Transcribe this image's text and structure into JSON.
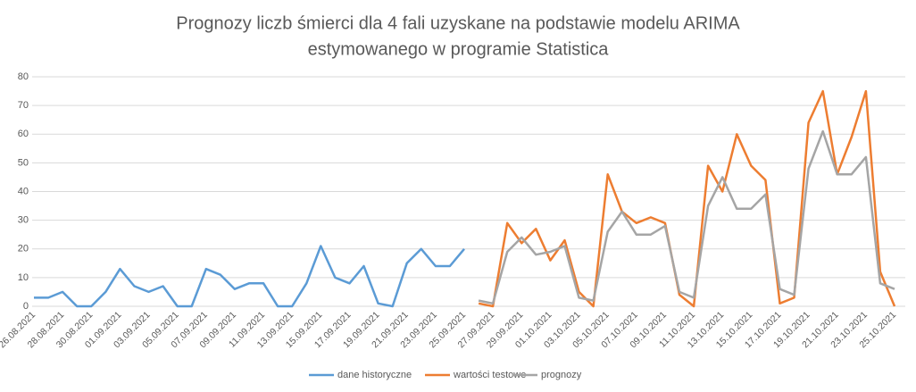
{
  "chart_data": {
    "type": "line",
    "title": [
      "Prognozy liczb śmierci dla 4 fali uzyskane na podstawie modelu ARIMA",
      "estymowanego w programie Statistica"
    ],
    "categories": [
      "26.08.2021",
      null,
      "28.08.2021",
      null,
      "30.08.2021",
      null,
      "01.09.2021",
      null,
      "03.09.2021",
      null,
      "05.09.2021",
      null,
      "07.09.2021",
      null,
      "09.09.2021",
      null,
      "11.09.2021",
      null,
      "13.09.2021",
      null,
      "15.09.2021",
      null,
      "17.09.2021",
      null,
      "19.09.2021",
      null,
      "21.09.2021",
      null,
      "23.09.2021",
      null,
      "25.09.2021",
      null,
      "27.09.2021",
      null,
      "29.09.2021",
      null,
      "01.10.2021",
      null,
      "03.10.2021",
      null,
      "05.10.2021",
      null,
      "07.10.2021",
      null,
      "09.10.2021",
      null,
      "11.10.2021",
      null,
      "13.10.2021",
      null,
      "15.10.2021",
      null,
      "17.10.2021",
      null,
      "19.10.2021",
      null,
      "21.10.2021",
      null,
      "23.10.2021",
      null,
      "25.10.2021"
    ],
    "series": [
      {
        "name": "dane historyczne",
        "color": "#5b9bd5",
        "values": [
          3,
          3,
          5,
          0,
          0,
          5,
          13,
          7,
          5,
          7,
          0,
          0,
          13,
          11,
          6,
          8,
          8,
          0,
          0,
          8,
          21,
          10,
          8,
          14,
          1,
          0,
          15,
          20,
          14,
          14,
          20,
          null,
          null,
          null,
          null,
          null,
          null,
          null,
          null,
          null,
          null,
          null,
          null,
          null,
          null,
          null,
          null,
          null,
          null,
          null,
          null,
          null,
          null,
          null,
          null,
          null,
          null,
          null,
          null,
          null,
          null
        ]
      },
      {
        "name": "wartości testowe",
        "color": "#ed7d31",
        "values": [
          null,
          null,
          null,
          null,
          null,
          null,
          null,
          null,
          null,
          null,
          null,
          null,
          null,
          null,
          null,
          null,
          null,
          null,
          null,
          null,
          null,
          null,
          null,
          null,
          null,
          null,
          null,
          null,
          null,
          null,
          null,
          1,
          0,
          29,
          22,
          27,
          16,
          23,
          5,
          0,
          46,
          33,
          29,
          31,
          29,
          4,
          0,
          49,
          40,
          60,
          49,
          44,
          1,
          3,
          64,
          75,
          46,
          59,
          75,
          12,
          0
        ]
      },
      {
        "name": "prognozy",
        "color": "#a5a5a5",
        "values": [
          null,
          null,
          null,
          null,
          null,
          null,
          null,
          null,
          null,
          null,
          null,
          null,
          null,
          null,
          null,
          null,
          null,
          null,
          null,
          null,
          null,
          null,
          null,
          null,
          null,
          null,
          null,
          null,
          null,
          null,
          null,
          2,
          1,
          19,
          24,
          18,
          19,
          21,
          3,
          2,
          26,
          33,
          25,
          25,
          28,
          5,
          3,
          35,
          45,
          34,
          34,
          39,
          6,
          4,
          48,
          61,
          46,
          46,
          52,
          8,
          6
        ]
      }
    ],
    "ylim": [
      0,
      80
    ],
    "yticks": [
      0,
      10,
      20,
      30,
      40,
      50,
      60,
      70,
      80
    ],
    "grid": true,
    "legend": "bottom"
  }
}
